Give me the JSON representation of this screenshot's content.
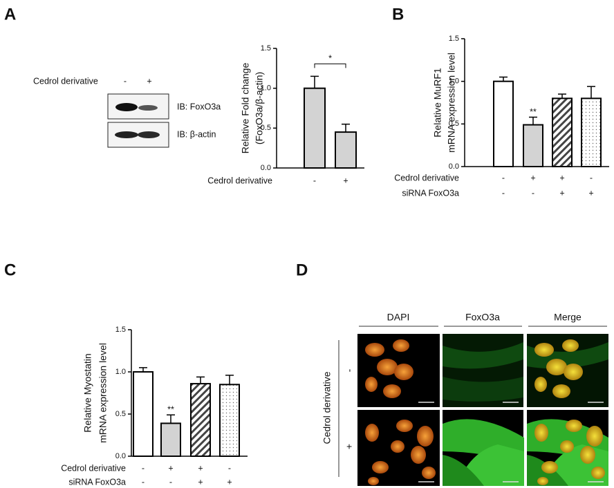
{
  "panel_labels": [
    "A",
    "B",
    "C",
    "D"
  ],
  "blot": {
    "treatment_label": "Cedrol derivative",
    "lanes": [
      "-",
      "+"
    ],
    "rows": [
      "IB: FoxO3a",
      "IB: β-actin"
    ]
  },
  "microscopy": {
    "columns": [
      "DAPI",
      "FoxO3a",
      "Merge"
    ],
    "row_title": "Cedrol derivative",
    "rows": [
      "-",
      "+"
    ]
  },
  "chart_data": [
    {
      "type": "bar",
      "ylabel": [
        "Relative Fold change",
        "(FoxO3a/β-actin)"
      ],
      "conditions": [
        {
          "name": "Cedrol derivative",
          "levels": [
            "-",
            "+"
          ]
        }
      ],
      "values": [
        1.0,
        0.45
      ],
      "errors": [
        0.15,
        0.1
      ],
      "fills": [
        "#d3d3d3",
        "#d3d3d3"
      ],
      "patterns": [
        "none",
        "none"
      ],
      "bracket": "*",
      "ylim": [
        0,
        1.5
      ],
      "yticks": [
        {
          "value": 0,
          "label": "0.0"
        },
        0.5,
        {
          "value": 1,
          "label": "1.0"
        },
        1.5
      ]
    },
    {
      "type": "bar",
      "ylabel": [
        "Relative MuRF1",
        "mRNA expression level"
      ],
      "conditions": [
        {
          "name": "Cedrol derivative",
          "levels": [
            "-",
            "+",
            "+",
            "-"
          ]
        },
        {
          "name": "siRNA FoxO3a",
          "levels": [
            "-",
            "-",
            "+",
            "+"
          ]
        }
      ],
      "values": [
        1.0,
        0.49,
        0.8,
        0.8
      ],
      "errors": [
        0.05,
        0.09,
        0.05,
        0.14
      ],
      "fills": [
        "#ffffff",
        "#d3d3d3",
        "#ffffff",
        "#ffffff"
      ],
      "patterns": [
        "none",
        "none",
        "hatch",
        "dots"
      ],
      "significance": [
        null,
        "**",
        null,
        null
      ],
      "ylim": [
        0,
        1.5
      ],
      "yticks": [
        {
          "value": 0,
          "label": "0.0"
        },
        0.5,
        {
          "value": 1,
          "label": "1.0"
        },
        1.5
      ]
    },
    {
      "type": "bar",
      "ylabel": [
        "Relative Myostatin",
        "mRNA expression level"
      ],
      "conditions": [
        {
          "name": "Cedrol derivative",
          "levels": [
            "-",
            "+",
            "+",
            "-"
          ]
        },
        {
          "name": "siRNA FoxO3a",
          "levels": [
            "-",
            "-",
            "+",
            "+"
          ]
        }
      ],
      "values": [
        1.0,
        0.39,
        0.86,
        0.85
      ],
      "errors": [
        0.05,
        0.1,
        0.08,
        0.11
      ],
      "fills": [
        "#ffffff",
        "#d3d3d3",
        "#ffffff",
        "#ffffff"
      ],
      "patterns": [
        "none",
        "none",
        "hatch",
        "dots"
      ],
      "significance": [
        null,
        "**",
        null,
        null
      ],
      "ylim": [
        0,
        1.5
      ],
      "yticks": [
        {
          "value": 0,
          "label": "0.0"
        },
        0.5,
        {
          "value": 1,
          "label": "1.0"
        },
        1.5
      ]
    }
  ]
}
